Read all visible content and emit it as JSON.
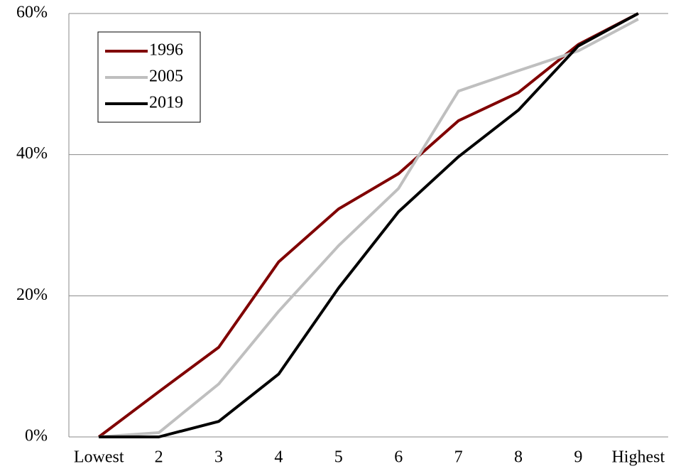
{
  "chart_data": {
    "type": "line",
    "categories": [
      "Lowest",
      "2",
      "3",
      "4",
      "5",
      "6",
      "7",
      "8",
      "9",
      "Highest"
    ],
    "series": [
      {
        "name": "1996",
        "color": "#800000",
        "values": [
          0,
          6.4,
          12.7,
          24.8,
          32.3,
          37.3,
          44.8,
          48.8,
          55.6,
          60
        ]
      },
      {
        "name": "2005",
        "color": "#bfbfbf",
        "values": [
          0,
          0.6,
          7.5,
          17.8,
          27.1,
          35.2,
          49.0,
          51.9,
          54.7,
          59.2
        ]
      },
      {
        "name": "2019",
        "color": "#000000",
        "values": [
          0,
          0,
          2.2,
          8.9,
          21.1,
          31.9,
          39.7,
          46.3,
          55.4,
          60
        ]
      }
    ],
    "ylim": [
      0,
      60
    ],
    "yticks": [
      {
        "value": 0,
        "label": "0%"
      },
      {
        "value": 20,
        "label": "20%"
      },
      {
        "value": 40,
        "label": "40%"
      },
      {
        "value": 60,
        "label": "60%"
      }
    ],
    "grid": true,
    "legend": "upper left"
  }
}
